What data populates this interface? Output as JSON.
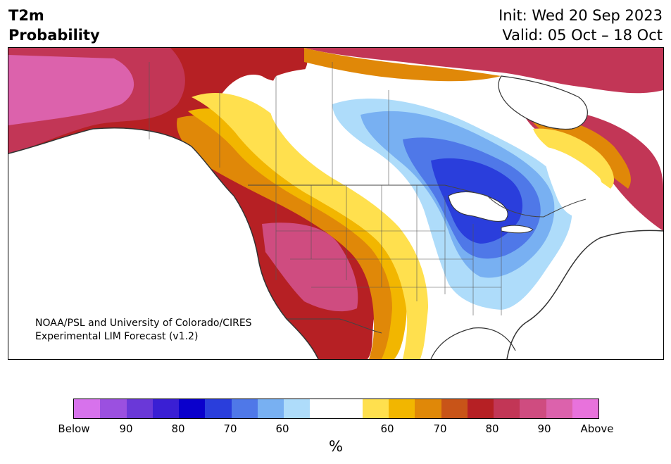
{
  "title": {
    "variable": "T2m",
    "kind": "Probability",
    "init": "Init: Wed 20 Sep 2023",
    "valid": "Valid: 05 Oct – 18 Oct"
  },
  "credit": {
    "line1": "NOAA/PSL and University of Colorado/CIRES",
    "line2": "Experimental LIM Forecast (v1.2)"
  },
  "colorbar": {
    "unit": "%",
    "ticks": [
      "Below",
      "90",
      "80",
      "70",
      "60",
      "60",
      "70",
      "80",
      "90",
      "Above"
    ],
    "colors": [
      "#d772ec",
      "#9b50e0",
      "#6a38d8",
      "#3a1fd4",
      "#0a00cc",
      "#2a3edc",
      "#4f78e8",
      "#78b0f2",
      "#aedcfa",
      "#ffffff",
      "#ffffff",
      "#ffe04e",
      "#f2b600",
      "#e08808",
      "#c85418",
      "#b62024",
      "#c23656",
      "#cf4c80",
      "#dc62ac",
      "#e872dc"
    ]
  },
  "map": {
    "region": "North America",
    "colors": {
      "above_far": "#dc62ac",
      "above_90": "#cf4c80",
      "above_85": "#c23656",
      "above_80": "#b62024",
      "above_75": "#c85418",
      "above_70": "#e08808",
      "above_65": "#f2b600",
      "above_60": "#ffe04e",
      "neutral": "#ffffff",
      "below_60": "#aedcfa",
      "below_65": "#78b0f2",
      "below_70": "#4f78e8",
      "below_75": "#2a3edc",
      "coast": "#333333"
    }
  }
}
